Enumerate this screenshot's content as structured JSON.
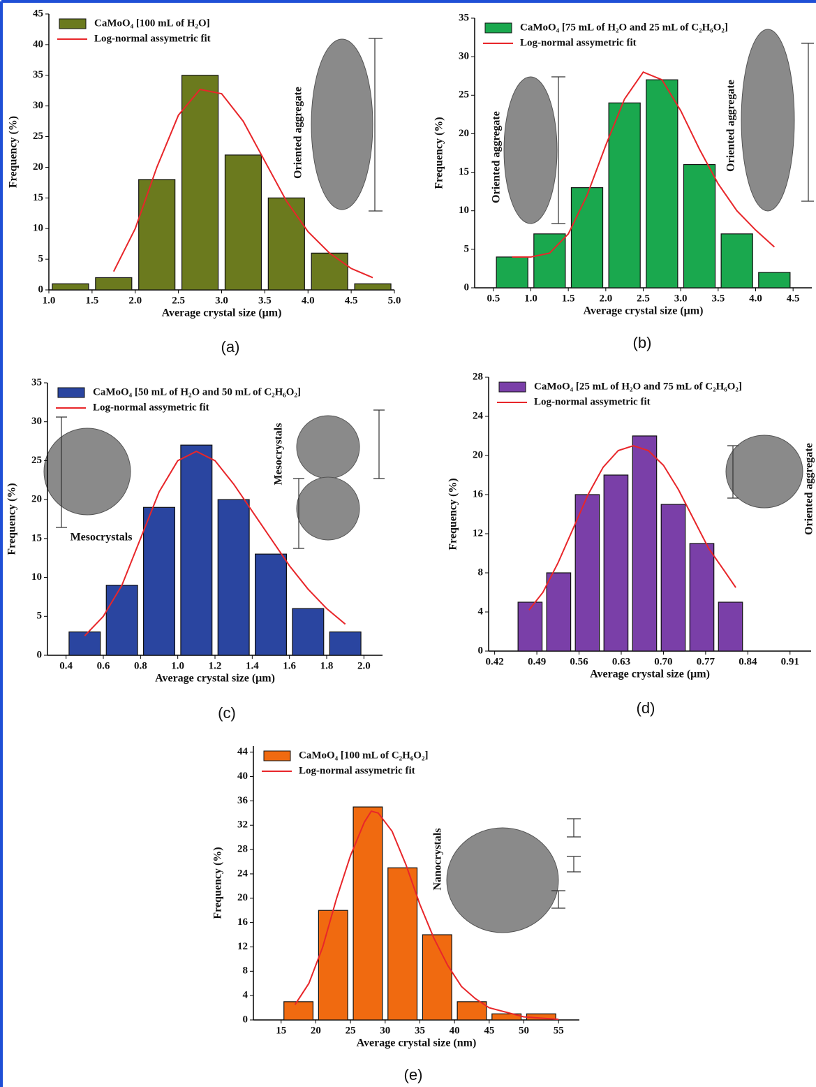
{
  "chart_data": [
    {
      "type": "histogram",
      "label": "(a)",
      "xlabel": "Average crystal size (μm)",
      "ylabel": "Frequency (%)",
      "bins": [
        1.0,
        1.5,
        2.0,
        2.5,
        3.0,
        3.5,
        4.0,
        4.5,
        5.0
      ],
      "series": [
        {
          "name": "CaMoO₄ [100 mL of H₂O]",
          "color": "#6b7a1e",
          "values": [
            1,
            2,
            18,
            35,
            22,
            15,
            6,
            1
          ]
        },
        {
          "name": "Log-normal assymetric fit",
          "color": "#e8262a",
          "type": "line",
          "x": [
            1.75,
            2.0,
            2.25,
            2.5,
            2.75,
            3.0,
            3.25,
            3.5,
            3.75,
            4.0,
            4.25,
            4.5,
            4.75
          ],
          "values": [
            3,
            10,
            20,
            28.5,
            32.7,
            32,
            27.5,
            21,
            14.5,
            9.5,
            6,
            3.5,
            2
          ]
        }
      ],
      "xlim": [
        1.0,
        5.0
      ],
      "xticks": [
        {
          "value": 1.0,
          "label": "1.0"
        },
        1.5,
        {
          "value": 2.0,
          "label": "2.0"
        },
        2.5,
        {
          "value": 3.0,
          "label": "3.0"
        },
        3.5,
        {
          "value": 4.0,
          "label": "4.0"
        },
        4.5,
        {
          "value": 5.0,
          "label": "5.0"
        }
      ],
      "ylim": [
        0,
        45
      ],
      "yticks": [
        0,
        5,
        10,
        15,
        20,
        25,
        30,
        35,
        40,
        45
      ],
      "annotations": [
        "Oriented aggregate"
      ]
    },
    {
      "type": "histogram",
      "label": "(b)",
      "xlabel": "Average crystal size (μm)",
      "ylabel": "Frequency (%)",
      "bins": [
        0.5,
        1.0,
        1.5,
        2.0,
        2.5,
        3.0,
        3.5,
        4.0,
        4.5
      ],
      "series": [
        {
          "name": "CaMoO₄ [75 mL of H₂O and 25 mL of C₂H₆O₂]",
          "color": "#1aa84e",
          "values": [
            4,
            7,
            13,
            24,
            27,
            16,
            7,
            2
          ]
        },
        {
          "name": "Log-normal assymetric fit",
          "color": "#e8262a",
          "type": "line",
          "x": [
            0.75,
            1.0,
            1.25,
            1.5,
            1.75,
            2.0,
            2.25,
            2.5,
            2.75,
            3.0,
            3.25,
            3.5,
            3.75,
            4.0,
            4.25
          ],
          "values": [
            4,
            4,
            4.5,
            7,
            12,
            18.5,
            24.5,
            28,
            27,
            23,
            18,
            13.5,
            10,
            7.5,
            5.3
          ]
        }
      ],
      "xlim": [
        0.25,
        4.75
      ],
      "xticks": [
        0.5,
        {
          "value": 1.0,
          "label": "1.0"
        },
        1.5,
        {
          "value": 2.0,
          "label": "2.0"
        },
        2.5,
        {
          "value": 3.0,
          "label": "3.0"
        },
        3.5,
        {
          "value": 4.0,
          "label": "4.0"
        },
        4.5
      ],
      "ylim": [
        0,
        35
      ],
      "yticks": [
        0,
        5,
        10,
        15,
        20,
        25,
        30,
        35
      ],
      "annotations": [
        "Oriented aggregate",
        "Oriented aggregate"
      ]
    },
    {
      "type": "histogram",
      "label": "(c)",
      "xlabel": "Average crystal size (μm)",
      "ylabel": "Frequency (%)",
      "bins": [
        0.4,
        0.6,
        0.8,
        1.0,
        1.2,
        1.4,
        1.6,
        1.8,
        2.0
      ],
      "series": [
        {
          "name": "CaMoO₄ [50 mL of H₂O and 50 mL of C₂H₆O₂]",
          "color": "#2a45a0",
          "values": [
            3,
            9,
            19,
            27,
            20,
            13,
            6,
            3
          ]
        },
        {
          "name": "Log-normal assymetric fit",
          "color": "#e8262a",
          "type": "line",
          "x": [
            0.5,
            0.6,
            0.7,
            0.8,
            0.9,
            1.0,
            1.1,
            1.2,
            1.3,
            1.4,
            1.5,
            1.6,
            1.7,
            1.8,
            1.9
          ],
          "values": [
            2.5,
            5,
            9,
            15,
            21,
            25,
            26.2,
            25,
            22,
            18.5,
            15,
            11.5,
            8.5,
            6,
            4
          ]
        }
      ],
      "xlim": [
        0.3,
        2.1
      ],
      "xticks": [
        0.4,
        0.6,
        0.8,
        {
          "value": 1.0,
          "label": "1.0"
        },
        1.2,
        1.4,
        1.6,
        1.8,
        {
          "value": 2.0,
          "label": "2.0"
        }
      ],
      "ylim": [
        0,
        35
      ],
      "yticks": [
        0,
        5,
        10,
        15,
        20,
        25,
        30,
        35
      ],
      "annotations": [
        "Mesocrystals",
        "Mesocrystals"
      ]
    },
    {
      "type": "histogram",
      "label": "(d)",
      "xlabel": "Average crystal size (μm)",
      "ylabel": "Frequency (%)",
      "bins": [
        0.455,
        0.5025,
        0.55,
        0.5975,
        0.645,
        0.6925,
        0.74,
        0.7875,
        0.835
      ],
      "series": [
        {
          "name": "CaMoO₄ [25 mL of H₂O and 75 mL of C₂H₆O₂]",
          "color": "#7a3fa8",
          "values": [
            5,
            8,
            16,
            18,
            22,
            15,
            11,
            5
          ]
        },
        {
          "name": "Log-normal assymetric fit",
          "color": "#e8262a",
          "type": "line",
          "x": [
            0.477,
            0.5,
            0.525,
            0.55,
            0.575,
            0.6,
            0.625,
            0.65,
            0.675,
            0.7,
            0.725,
            0.75,
            0.775,
            0.8,
            0.82
          ],
          "values": [
            4.2,
            6,
            9,
            12.5,
            16,
            18.8,
            20.5,
            21,
            20.5,
            19,
            16.5,
            13.5,
            10.5,
            8.3,
            6.5
          ]
        }
      ],
      "xlim": [
        0.41,
        0.945
      ],
      "xticks": [
        0.42,
        0.49,
        0.56,
        0.63,
        {
          "value": 0.7,
          "label": "0.70"
        },
        0.77,
        0.84,
        0.91
      ],
      "ylim": [
        0,
        28
      ],
      "yticks": [
        0,
        4,
        8,
        12,
        16,
        20,
        24,
        28
      ],
      "annotations": [
        "Oriented aggregate"
      ]
    },
    {
      "type": "histogram",
      "label": "(e)",
      "xlabel": "Average crystal size (nm)",
      "ylabel": "Frequency (%)",
      "bins": [
        15,
        20,
        25,
        30,
        35,
        40,
        45,
        50,
        55
      ],
      "series": [
        {
          "name": "CaMoO₄ [100 mL of C₂H₆O₂]",
          "color": "#f06a10",
          "values": [
            3,
            18,
            35,
            25,
            14,
            3,
            1,
            1
          ]
        },
        {
          "name": "Log-normal assymetric fit",
          "color": "#e8262a",
          "type": "line",
          "x": [
            17,
            19,
            21,
            23,
            25,
            27,
            28,
            29,
            31,
            33,
            35,
            37,
            39,
            41,
            43,
            45,
            50,
            55
          ],
          "values": [
            2.5,
            6,
            12,
            20,
            27,
            32.5,
            34.3,
            34,
            31,
            25.5,
            19,
            13.5,
            9,
            5.5,
            3.5,
            2,
            0.5,
            0.1
          ]
        }
      ],
      "xlim": [
        11,
        58
      ],
      "xticks": [
        15,
        20,
        25,
        30,
        35,
        40,
        45,
        50,
        55
      ],
      "ylim": [
        0,
        45
      ],
      "yticks": [
        0,
        4,
        8,
        12,
        16,
        20,
        24,
        28,
        32,
        36,
        40,
        44
      ],
      "annotations": [
        "Nanocrystals"
      ]
    }
  ]
}
